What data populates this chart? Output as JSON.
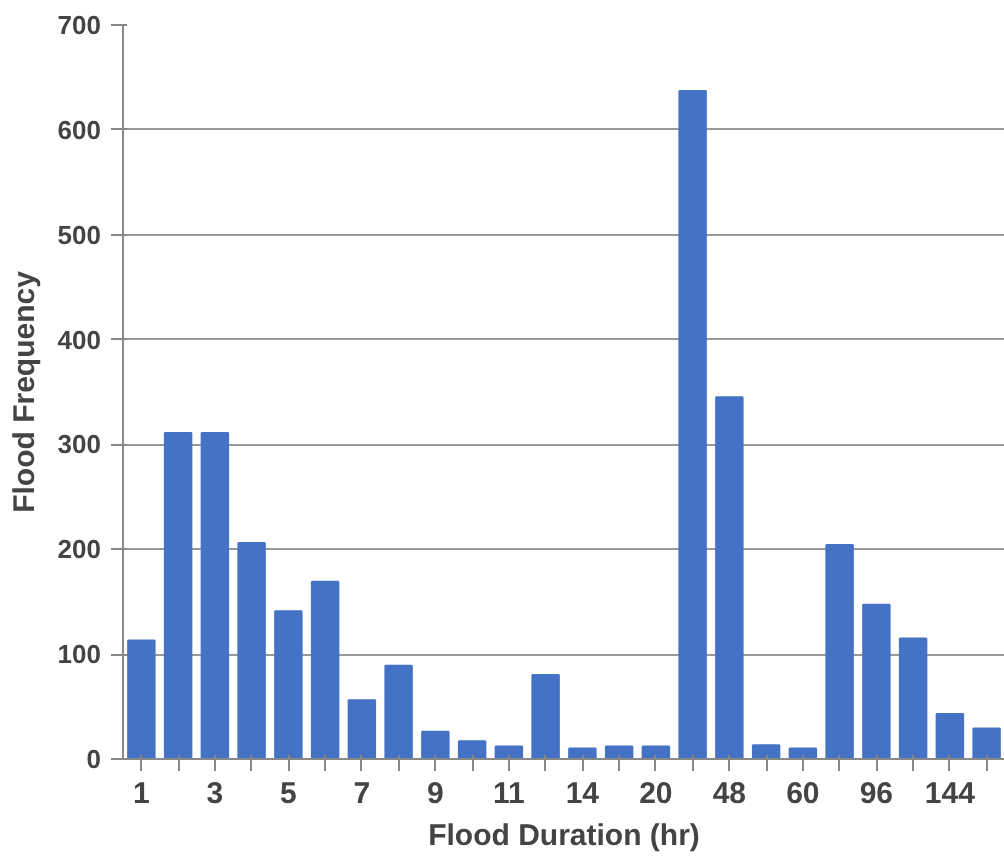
{
  "chart_data": {
    "type": "bar",
    "xlabel": "Flood Duration (hr)",
    "ylabel": "Flood Frequency",
    "categories": [
      "1",
      null,
      "3",
      null,
      "5",
      null,
      "7",
      null,
      "9",
      null,
      "11",
      null,
      "14",
      null,
      "20",
      null,
      "48",
      null,
      "60",
      null,
      "96",
      null,
      "144",
      null
    ],
    "values": [
      113,
      311,
      311,
      206,
      141,
      169,
      56,
      89,
      26,
      17,
      12,
      80,
      10,
      12,
      12,
      637,
      345,
      13,
      10,
      204,
      147,
      115,
      43,
      29
    ],
    "color": "#4472c4",
    "ylim": [
      0,
      700
    ],
    "yticks": [
      0,
      100,
      200,
      300,
      400,
      500,
      600,
      700
    ],
    "grid": "y"
  }
}
